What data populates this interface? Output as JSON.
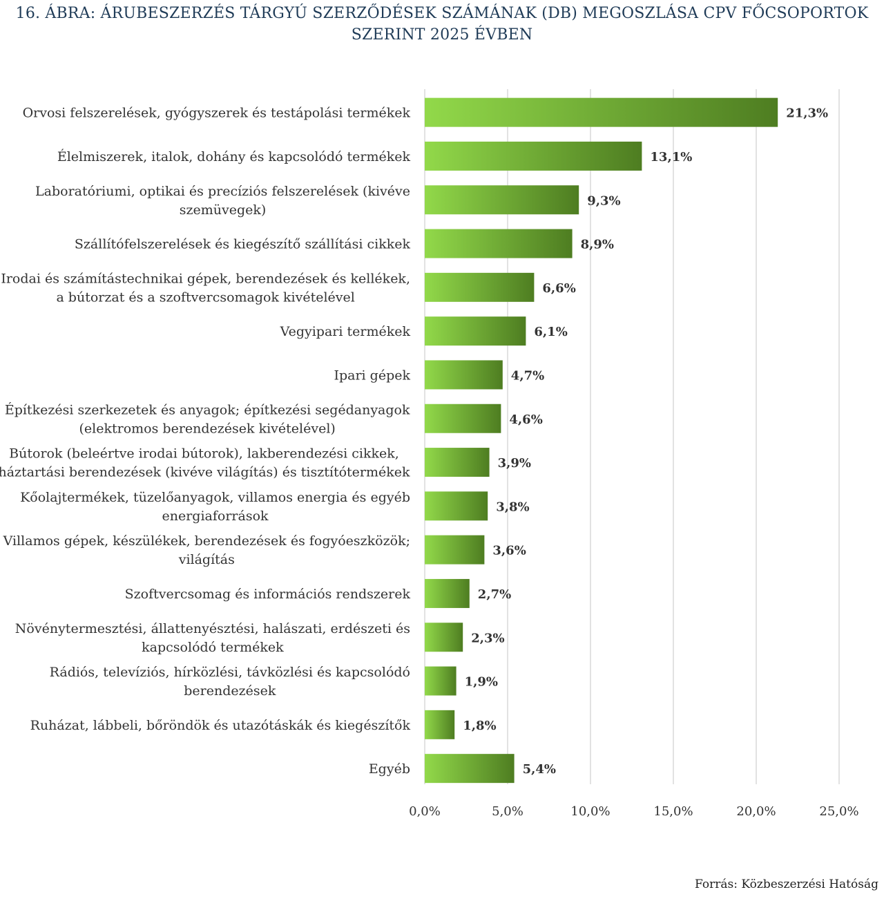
{
  "chart_data": {
    "type": "bar",
    "orientation": "horizontal",
    "title_lines": [
      "16. ÁBRA: ÁRUBESZERZÉS TÁRGYÚ SZERZŐDÉSEK SZÁMÁNAK (DB) MEGOSZLÁSA CPV FŐCSOPORTOK",
      "SZERINT 2025 ÉVBEN"
    ],
    "categories": [
      [
        "Orvosi felszerelések, gyógyszerek és testápolási termékek"
      ],
      [
        "Élelmiszerek, italok, dohány és kapcsolódó termékek"
      ],
      [
        "Laboratóriumi, optikai és precíziós felszerelések (kivéve",
        "szemüvegek)"
      ],
      [
        "Szállítófelszerelések és kiegészítő szállítási cikkek"
      ],
      [
        "Irodai és számítástechnikai gépek, berendezések és kellékek,",
        "a bútorzat és a szoftvercsomagok kivételével"
      ],
      [
        "Vegyipari termékek"
      ],
      [
        "Ipari gépek"
      ],
      [
        "Építkezési szerkezetek és anyagok; építkezési segédanyagok",
        "(elektromos berendezések kivételével)"
      ],
      [
        "Bútorok (beleértve irodai bútorok), lakberendezési cikkek,",
        "háztartási berendezések (kivéve világítás) és tisztítótermékek"
      ],
      [
        "Kőolajtermékek, tüzelőanyagok, villamos energia és egyéb",
        "energiaforrások"
      ],
      [
        "Villamos gépek, készülékek, berendezések és fogyóeszközök;",
        "világítás"
      ],
      [
        "Szoftvercsomag és információs rendszerek"
      ],
      [
        "Növénytermesztési, állattenyésztési, halászati, erdészeti és",
        "kapcsolódó termékek"
      ],
      [
        "Rádiós, televíziós, hírközlési, távközlési és kapcsolódó",
        "berendezések"
      ],
      [
        "Ruházat, lábbeli, bőröndök és utazótáskák és kiegészítők"
      ],
      [
        "Egyéb"
      ]
    ],
    "values": [
      21.3,
      13.1,
      9.3,
      8.9,
      6.6,
      6.1,
      4.7,
      4.6,
      3.9,
      3.8,
      3.6,
      2.7,
      2.3,
      1.9,
      1.8,
      5.4
    ],
    "value_labels": [
      "21,3%",
      "13,1%",
      "9,3%",
      "8,9%",
      "6,6%",
      "6,1%",
      "4,7%",
      "4,6%",
      "3,9%",
      "3,8%",
      "3,6%",
      "2,7%",
      "2,3%",
      "1,9%",
      "1,8%",
      "5,4%"
    ],
    "xlim": [
      0,
      25
    ],
    "xticks": [
      0,
      5,
      10,
      15,
      20,
      25
    ],
    "xtick_labels": [
      "0,0%",
      "5,0%",
      "10,0%",
      "15,0%",
      "20,0%",
      "25,0%"
    ],
    "grid": true,
    "legend": "none",
    "bar_gradient": [
      "#92d94a",
      "#4e7d21"
    ],
    "gridline_color": "#d9d9d9"
  },
  "source_note": "Forrás: Közbeszerzési Hatóság"
}
